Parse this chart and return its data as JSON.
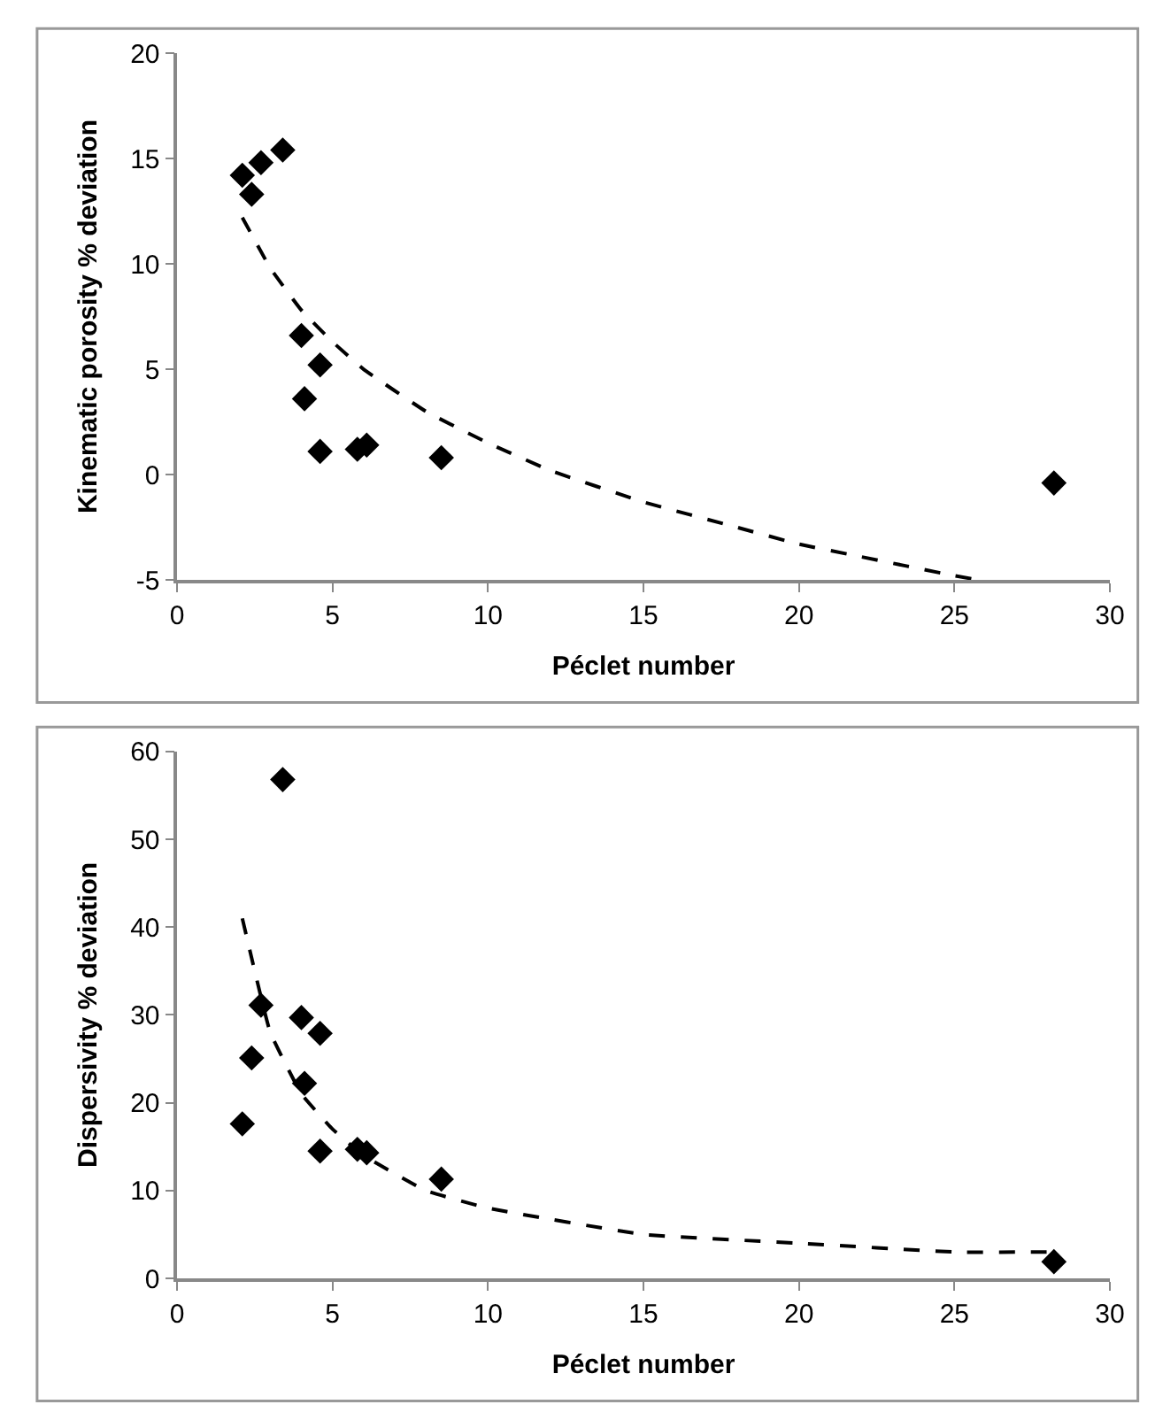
{
  "chart_data": [
    {
      "type": "scatter",
      "xlabel": "Péclet number",
      "ylabel": "Kinematic porosity % deviation",
      "xlim": [
        0,
        30
      ],
      "xticks": [
        0,
        5,
        10,
        15,
        20,
        25,
        30
      ],
      "ylim": [
        -5,
        20
      ],
      "yticks": [
        -5,
        0,
        5,
        10,
        15,
        20
      ],
      "series": [
        {
          "marker": "diamond",
          "color": "#000000",
          "x": [
            2.1,
            2.4,
            2.7,
            3.4,
            4.0,
            4.1,
            4.6,
            4.6,
            5.8,
            6.1,
            8.5,
            28.2
          ],
          "values": [
            14.2,
            13.3,
            14.8,
            15.4,
            6.6,
            3.6,
            1.1,
            5.2,
            1.2,
            1.4,
            0.8,
            -0.4
          ]
        },
        {
          "type": "line",
          "color": "#000000",
          "line_style": "dashed",
          "x": [
            2.1,
            3,
            4,
            5,
            6,
            8,
            10,
            12,
            15,
            18,
            20,
            22,
            25,
            25.8
          ],
          "values": [
            12.2,
            9.8,
            7.8,
            6.3,
            5.0,
            3.0,
            1.5,
            0.2,
            -1.3,
            -2.5,
            -3.3,
            -3.9,
            -4.8,
            -5.0
          ]
        }
      ]
    },
    {
      "type": "scatter",
      "xlabel": "Péclet number",
      "ylabel": "Dispersivity % deviation",
      "xlim": [
        0,
        30
      ],
      "xticks": [
        0,
        5,
        10,
        15,
        20,
        25,
        30
      ],
      "ylim": [
        0,
        60
      ],
      "yticks": [
        0,
        10,
        20,
        30,
        40,
        50,
        60
      ],
      "series": [
        {
          "marker": "diamond",
          "color": "#000000",
          "x": [
            2.1,
            2.4,
            2.7,
            3.4,
            4.0,
            4.1,
            4.6,
            4.6,
            5.8,
            6.1,
            8.5,
            28.2
          ],
          "values": [
            17.6,
            25.1,
            31.1,
            56.8,
            29.7,
            22.2,
            14.5,
            27.9,
            14.7,
            14.3,
            11.3,
            1.9
          ]
        },
        {
          "type": "line",
          "color": "#000000",
          "line_style": "dashed",
          "x": [
            2.1,
            3,
            4,
            5,
            6,
            8,
            10,
            15,
            20,
            25,
            28.2
          ],
          "values": [
            41,
            28,
            21,
            17,
            14,
            10,
            8,
            5,
            4,
            3,
            3
          ]
        }
      ]
    }
  ]
}
